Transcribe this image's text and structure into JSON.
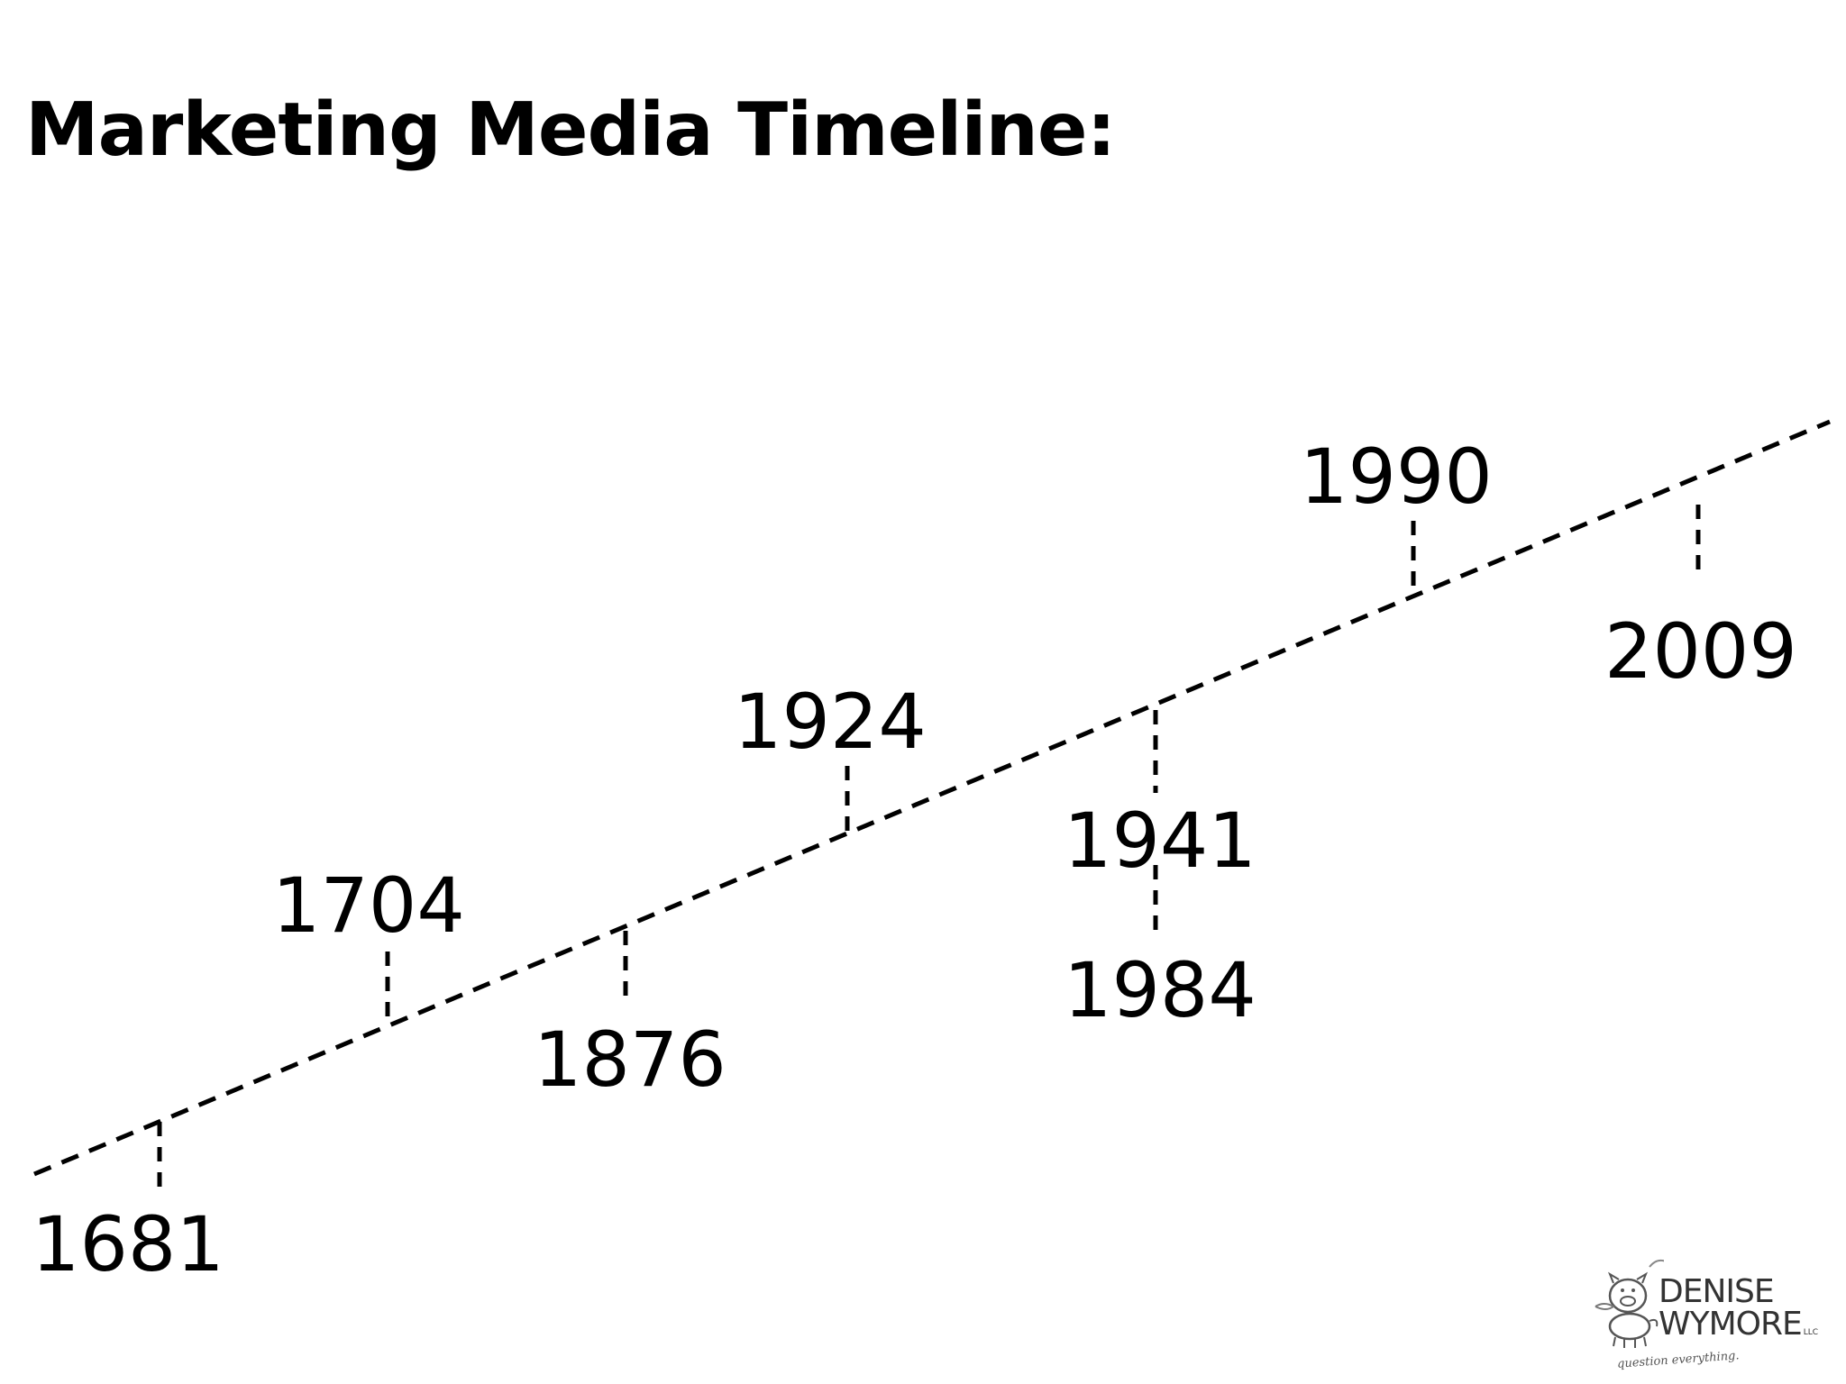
{
  "title": "Marketing Media Timeline:",
  "timeline": {
    "line_color": "#000000",
    "events": [
      {
        "year": "1681",
        "label_side": "below"
      },
      {
        "year": "1704",
        "label_side": "above"
      },
      {
        "year": "1876",
        "label_side": "below"
      },
      {
        "year": "1924",
        "label_side": "above"
      },
      {
        "year": "1941",
        "label_side": "below"
      },
      {
        "year": "1984",
        "label_side": "below"
      },
      {
        "year": "1990",
        "label_side": "above"
      },
      {
        "year": "2009",
        "label_side": "below"
      }
    ]
  },
  "logo": {
    "icon": "pig-mascot-icon",
    "line1": "DENISE",
    "line2": "WYMORE",
    "suffix": "LLC",
    "tagline": "question everything."
  }
}
